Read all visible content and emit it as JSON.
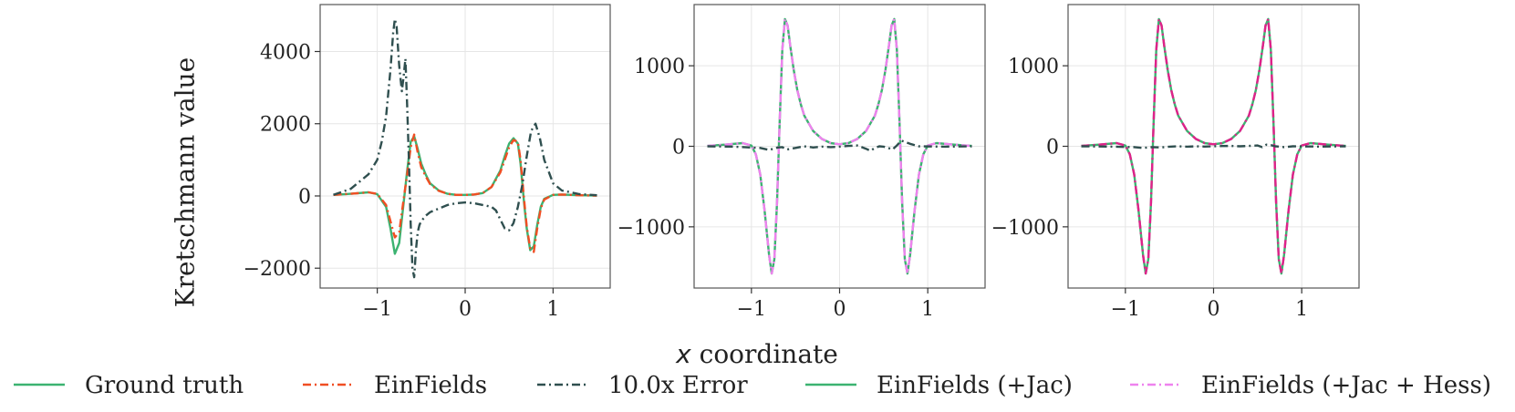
{
  "figure": {
    "ylabel": "Kretschmann value",
    "xlabel_var": "x",
    "xlabel_rest": " coordinate"
  },
  "colors": {
    "ground_truth": "#3cb371",
    "einfields": "#f04e23",
    "error": "#2f4f4f",
    "einfields_jac": "#3cb371",
    "einfields_jac_hess": "#ee82ee",
    "einfields_jac_hess_right": "#e0218a"
  },
  "legend": [
    {
      "label": "Ground truth",
      "style": "solid",
      "color": "#3cb371"
    },
    {
      "label": "EinFields",
      "style": "dashdot",
      "color": "#f04e23"
    },
    {
      "label": "10.0x Error",
      "style": "dashdot",
      "color": "#2f4f4f"
    },
    {
      "label": "EinFields (+Jac)",
      "style": "solid",
      "color": "#3cb371"
    },
    {
      "label": "EinFields (+Jac + Hess)",
      "style": "dashdot",
      "color": "#ee82ee"
    }
  ],
  "chart_data": [
    {
      "type": "line",
      "panel": "left",
      "xlim": [
        -1.65,
        1.65
      ],
      "ylim": [
        -2550,
        5300
      ],
      "xticks": [
        -1,
        0,
        1
      ],
      "xtick_labels": [
        "−1",
        "0",
        "1"
      ],
      "yticks": [
        -2000,
        0,
        2000,
        4000
      ],
      "ytick_labels": [
        "−2000",
        "0",
        "2000",
        "4000"
      ],
      "grid": true,
      "series": [
        {
          "name": "Ground truth",
          "style": "solid",
          "color": "#3cb371",
          "x": [
            -1.5,
            -1.3,
            -1.1,
            -1.0,
            -0.9,
            -0.85,
            -0.8,
            -0.75,
            -0.7,
            -0.66,
            -0.62,
            -0.58,
            -0.54,
            -0.5,
            -0.45,
            -0.4,
            -0.3,
            -0.2,
            -0.1,
            0,
            0.1,
            0.2,
            0.3,
            0.4,
            0.45,
            0.5,
            0.55,
            0.6,
            0.63,
            0.67,
            0.7,
            0.74,
            0.78,
            0.82,
            0.86,
            0.9,
            1.0,
            1.1,
            1.3,
            1.5
          ],
          "y": [
            30,
            60,
            100,
            50,
            -300,
            -900,
            -1600,
            -1300,
            -200,
            700,
            1500,
            1650,
            1300,
            900,
            600,
            350,
            150,
            60,
            30,
            30,
            40,
            80,
            250,
            700,
            1100,
            1450,
            1600,
            1450,
            900,
            -200,
            -900,
            -1500,
            -1400,
            -800,
            -300,
            -80,
            30,
            40,
            20,
            10
          ]
        },
        {
          "name": "EinFields",
          "style": "dashdot",
          "color": "#f04e23",
          "x": [
            -1.5,
            -1.3,
            -1.1,
            -1.0,
            -0.9,
            -0.85,
            -0.8,
            -0.75,
            -0.7,
            -0.66,
            -0.62,
            -0.58,
            -0.54,
            -0.5,
            -0.45,
            -0.4,
            -0.3,
            -0.2,
            -0.1,
            0,
            0.1,
            0.2,
            0.3,
            0.4,
            0.45,
            0.5,
            0.55,
            0.6,
            0.63,
            0.67,
            0.7,
            0.74,
            0.78,
            0.82,
            0.86,
            0.9,
            1.0,
            1.1,
            1.3,
            1.5
          ],
          "y": [
            30,
            60,
            100,
            60,
            -250,
            -700,
            -1150,
            -1000,
            -100,
            600,
            1350,
            1700,
            1200,
            800,
            550,
            330,
            140,
            60,
            30,
            30,
            40,
            80,
            250,
            650,
            1000,
            1350,
            1550,
            1500,
            1000,
            -100,
            -850,
            -1450,
            -1550,
            -900,
            -350,
            -100,
            30,
            40,
            20,
            10
          ]
        },
        {
          "name": "10.0x Error",
          "style": "dashdot",
          "color": "#2f4f4f",
          "x": [
            -1.5,
            -1.3,
            -1.1,
            -1.0,
            -0.95,
            -0.9,
            -0.85,
            -0.82,
            -0.8,
            -0.78,
            -0.75,
            -0.72,
            -0.7,
            -0.68,
            -0.66,
            -0.64,
            -0.62,
            -0.6,
            -0.58,
            -0.56,
            -0.54,
            -0.52,
            -0.5,
            -0.45,
            -0.4,
            -0.3,
            -0.2,
            -0.1,
            0,
            0.1,
            0.2,
            0.3,
            0.35,
            0.4,
            0.45,
            0.5,
            0.55,
            0.6,
            0.65,
            0.7,
            0.75,
            0.8,
            0.85,
            0.9,
            1.0,
            1.1,
            1.3,
            1.5
          ],
          "y": [
            30,
            200,
            600,
            1000,
            1500,
            2200,
            3500,
            4500,
            4900,
            4700,
            3600,
            2900,
            3300,
            3800,
            2500,
            1000,
            -800,
            -2000,
            -2250,
            -1500,
            -1000,
            -800,
            -700,
            -550,
            -450,
            -350,
            -250,
            -200,
            -180,
            -200,
            -250,
            -300,
            -400,
            -650,
            -900,
            -950,
            -750,
            -300,
            300,
            1100,
            1800,
            2000,
            1600,
            1000,
            350,
            150,
            50,
            20
          ]
        }
      ]
    },
    {
      "type": "line",
      "panel": "center",
      "xlim": [
        -1.65,
        1.65
      ],
      "ylim": [
        -1760,
        1760
      ],
      "xticks": [
        -1,
        0,
        1
      ],
      "xtick_labels": [
        "−1",
        "0",
        "1"
      ],
      "yticks": [
        -1000,
        0,
        1000
      ],
      "ytick_labels": [
        "−1000",
        "0",
        "1000"
      ],
      "grid": true,
      "series": [
        {
          "name": "EinFields (+Jac)",
          "style": "solid",
          "color": "#3cb371",
          "x": [
            -1.5,
            -1.3,
            -1.1,
            -1.0,
            -0.95,
            -0.9,
            -0.85,
            -0.8,
            -0.77,
            -0.74,
            -0.71,
            -0.68,
            -0.65,
            -0.62,
            -0.59,
            -0.56,
            -0.52,
            -0.48,
            -0.44,
            -0.4,
            -0.3,
            -0.2,
            -0.1,
            0,
            0.1,
            0.2,
            0.3,
            0.4,
            0.44,
            0.48,
            0.52,
            0.56,
            0.59,
            0.62,
            0.65,
            0.68,
            0.71,
            0.74,
            0.77,
            0.8,
            0.85,
            0.9,
            0.95,
            1.0,
            1.1,
            1.3,
            1.5
          ],
          "y": [
            5,
            20,
            40,
            10,
            -100,
            -350,
            -800,
            -1350,
            -1580,
            -1400,
            -700,
            300,
            1200,
            1580,
            1500,
            1250,
            950,
            700,
            520,
            380,
            190,
            90,
            40,
            25,
            40,
            90,
            190,
            380,
            520,
            700,
            950,
            1250,
            1500,
            1580,
            1200,
            300,
            -700,
            -1400,
            -1580,
            -1350,
            -800,
            -350,
            -100,
            10,
            40,
            20,
            5
          ]
        },
        {
          "name": "EinFields (+Jac + Hess)",
          "style": "dashdot",
          "color": "#ee82ee",
          "x": [
            -1.5,
            -1.3,
            -1.1,
            -1.0,
            -0.95,
            -0.9,
            -0.85,
            -0.8,
            -0.77,
            -0.74,
            -0.71,
            -0.68,
            -0.65,
            -0.62,
            -0.59,
            -0.56,
            -0.52,
            -0.48,
            -0.44,
            -0.4,
            -0.3,
            -0.2,
            -0.1,
            0,
            0.1,
            0.2,
            0.3,
            0.4,
            0.44,
            0.48,
            0.52,
            0.56,
            0.59,
            0.62,
            0.65,
            0.68,
            0.71,
            0.74,
            0.77,
            0.8,
            0.85,
            0.9,
            0.95,
            1.0,
            1.1,
            1.3,
            1.5
          ],
          "y": [
            5,
            20,
            40,
            10,
            -100,
            -350,
            -800,
            -1350,
            -1580,
            -1400,
            -700,
            300,
            1200,
            1580,
            1500,
            1250,
            950,
            700,
            520,
            380,
            190,
            90,
            40,
            25,
            40,
            90,
            190,
            380,
            520,
            700,
            950,
            1250,
            1500,
            1580,
            1200,
            300,
            -700,
            -1400,
            -1580,
            -1350,
            -800,
            -350,
            -100,
            10,
            40,
            20,
            5
          ]
        },
        {
          "name": "10.0x Error",
          "style": "dashdot",
          "color": "#2f4f4f",
          "x": [
            -1.5,
            -1.2,
            -0.9,
            -0.8,
            -0.7,
            -0.65,
            -0.6,
            -0.5,
            -0.4,
            -0.3,
            -0.2,
            -0.1,
            0,
            0.1,
            0.2,
            0.3,
            0.35,
            0.4,
            0.45,
            0.5,
            0.55,
            0.6,
            0.65,
            0.7,
            0.8,
            0.9,
            1.2,
            1.5
          ],
          "y": [
            0,
            -5,
            -20,
            -45,
            -15,
            -10,
            -40,
            -20,
            0,
            -15,
            -5,
            -10,
            -5,
            5,
            10,
            -30,
            -55,
            -20,
            0,
            -5,
            -20,
            -40,
            10,
            70,
            30,
            0,
            -5,
            0
          ]
        }
      ]
    },
    {
      "type": "line",
      "panel": "right",
      "xlim": [
        -1.65,
        1.65
      ],
      "ylim": [
        -1760,
        1760
      ],
      "xticks": [
        -1,
        0,
        1
      ],
      "xtick_labels": [
        "−1",
        "0",
        "1"
      ],
      "yticks": [
        -1000,
        0,
        1000
      ],
      "ytick_labels": [
        "−1000",
        "0",
        "1000"
      ],
      "grid": true,
      "series": [
        {
          "name": "EinFields (+Jac)",
          "style": "solid",
          "color": "#3cb371",
          "x": [
            -1.5,
            -1.3,
            -1.1,
            -1.0,
            -0.95,
            -0.9,
            -0.85,
            -0.8,
            -0.77,
            -0.74,
            -0.71,
            -0.68,
            -0.65,
            -0.62,
            -0.59,
            -0.56,
            -0.52,
            -0.48,
            -0.44,
            -0.4,
            -0.3,
            -0.2,
            -0.1,
            0,
            0.1,
            0.2,
            0.3,
            0.4,
            0.44,
            0.48,
            0.52,
            0.56,
            0.59,
            0.62,
            0.65,
            0.68,
            0.71,
            0.74,
            0.77,
            0.8,
            0.85,
            0.9,
            0.95,
            1.0,
            1.1,
            1.3,
            1.5
          ],
          "y": [
            5,
            20,
            40,
            10,
            -100,
            -350,
            -800,
            -1350,
            -1580,
            -1400,
            -700,
            300,
            1200,
            1580,
            1500,
            1250,
            950,
            700,
            520,
            380,
            190,
            90,
            40,
            25,
            40,
            90,
            190,
            380,
            520,
            700,
            950,
            1250,
            1500,
            1580,
            1200,
            300,
            -700,
            -1400,
            -1580,
            -1350,
            -800,
            -350,
            -100,
            10,
            40,
            20,
            5
          ]
        },
        {
          "name": "EinFields (+Jac + Hess)",
          "style": "dashdot",
          "color": "#e0218a",
          "x": [
            -1.5,
            -1.3,
            -1.1,
            -1.0,
            -0.95,
            -0.9,
            -0.85,
            -0.8,
            -0.77,
            -0.74,
            -0.71,
            -0.68,
            -0.65,
            -0.62,
            -0.59,
            -0.56,
            -0.52,
            -0.48,
            -0.44,
            -0.4,
            -0.3,
            -0.2,
            -0.1,
            0,
            0.1,
            0.2,
            0.3,
            0.4,
            0.44,
            0.48,
            0.52,
            0.56,
            0.59,
            0.62,
            0.65,
            0.68,
            0.71,
            0.74,
            0.77,
            0.8,
            0.85,
            0.9,
            0.95,
            1.0,
            1.1,
            1.3,
            1.5
          ],
          "y": [
            5,
            20,
            40,
            10,
            -100,
            -350,
            -800,
            -1350,
            -1580,
            -1400,
            -700,
            300,
            1200,
            1580,
            1500,
            1250,
            950,
            700,
            520,
            380,
            190,
            90,
            40,
            25,
            40,
            90,
            190,
            380,
            520,
            700,
            950,
            1250,
            1500,
            1580,
            1200,
            300,
            -700,
            -1400,
            -1580,
            -1350,
            -800,
            -350,
            -100,
            10,
            40,
            20,
            5
          ]
        },
        {
          "name": "10.0x Error",
          "style": "dashdot",
          "color": "#2f4f4f",
          "x": [
            -1.5,
            -1.2,
            -0.9,
            -0.8,
            -0.7,
            -0.6,
            -0.5,
            -0.4,
            -0.3,
            -0.2,
            -0.1,
            0,
            0.1,
            0.2,
            0.3,
            0.4,
            0.5,
            0.55,
            0.6,
            0.65,
            0.7,
            0.8,
            0.9,
            1.2,
            1.5
          ],
          "y": [
            0,
            -3,
            -10,
            -20,
            -10,
            -15,
            -5,
            0,
            -5,
            0,
            -3,
            0,
            3,
            5,
            0,
            5,
            10,
            -10,
            20,
            15,
            0,
            -10,
            0,
            -3,
            0
          ]
        }
      ]
    }
  ]
}
